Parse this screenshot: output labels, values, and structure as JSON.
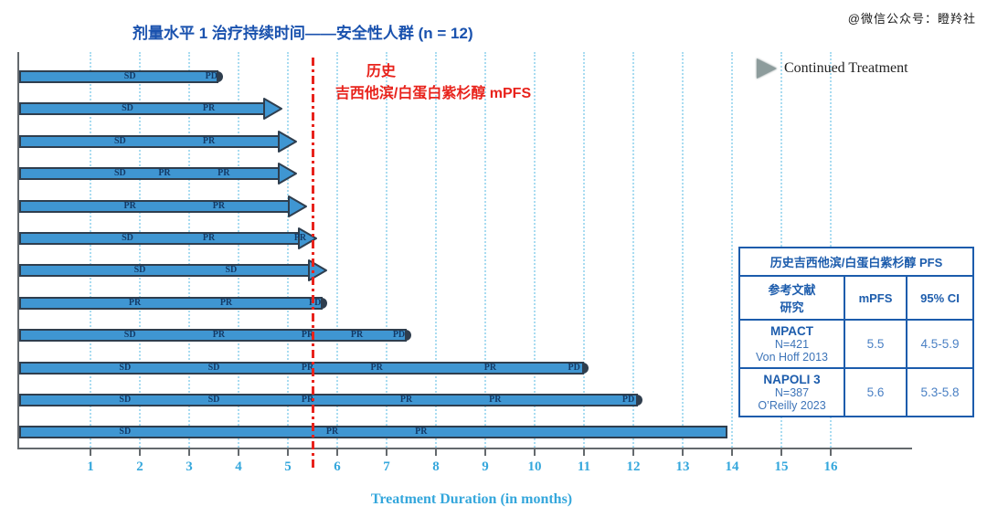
{
  "watermark": "@微信公众号：瞪羚社",
  "title": "剂量水平 1 治疗持续时间——安全性人群 (n = 12)",
  "legend": {
    "marker": "triangle-right",
    "label": "Continued Treatment"
  },
  "annotation": {
    "line1": "历史",
    "line2": "吉西他滨/白蛋白紫杉醇 mPFS",
    "color": "#e8231c"
  },
  "chart_data": {
    "type": "bar",
    "subtype": "horizontal-swimmer-plot",
    "title": "剂量水平 1 治疗持续时间——安全性人群 (n = 12)",
    "xlabel": "Treatment Duration (in months)",
    "x_ticks": [
      1,
      2,
      3,
      4,
      5,
      6,
      7,
      8,
      9,
      10,
      11,
      12,
      13,
      14,
      15,
      16
    ],
    "xlim": [
      0,
      16.6
    ],
    "grid": "vertical-dotted",
    "reference_line": {
      "x_months": 5.5,
      "style": "dash-dot",
      "color": "#e8231c",
      "label": "历史 吉西他滨/白蛋白紫杉醇 mPFS"
    },
    "legend_position": "top-right",
    "bars": [
      {
        "subject": 1,
        "duration_months": 3.6,
        "end": "PD",
        "labels": [
          {
            "text": "SD",
            "month": 1.8
          },
          {
            "text": "PD",
            "month": 3.45
          }
        ]
      },
      {
        "subject": 2,
        "duration_months": 4.8,
        "end": "continued",
        "labels": [
          {
            "text": "SD",
            "month": 1.75
          },
          {
            "text": "PR",
            "month": 3.4
          }
        ]
      },
      {
        "subject": 3,
        "duration_months": 5.1,
        "end": "continued",
        "labels": [
          {
            "text": "SD",
            "month": 1.6
          },
          {
            "text": "PR",
            "month": 3.4
          }
        ]
      },
      {
        "subject": 4,
        "duration_months": 5.1,
        "end": "continued",
        "labels": [
          {
            "text": "SD",
            "month": 1.6
          },
          {
            "text": "PR",
            "month": 2.5
          },
          {
            "text": "PR",
            "month": 3.7
          }
        ]
      },
      {
        "subject": 5,
        "duration_months": 5.3,
        "end": "continued",
        "labels": [
          {
            "text": "PR",
            "month": 1.8
          },
          {
            "text": "PR",
            "month": 3.6
          }
        ]
      },
      {
        "subject": 6,
        "duration_months": 5.5,
        "end": "continued",
        "labels": [
          {
            "text": "SD",
            "month": 1.75
          },
          {
            "text": "PR",
            "month": 3.4
          },
          {
            "text": "PR",
            "month": 5.25
          }
        ]
      },
      {
        "subject": 7,
        "duration_months": 5.7,
        "end": "continued",
        "labels": [
          {
            "text": "SD",
            "month": 2.0
          },
          {
            "text": "SD",
            "month": 3.85
          }
        ]
      },
      {
        "subject": 8,
        "duration_months": 5.7,
        "end": "PD",
        "labels": [
          {
            "text": "PR",
            "month": 1.9
          },
          {
            "text": "PR",
            "month": 3.75
          },
          {
            "text": "PD",
            "month": 5.55
          }
        ]
      },
      {
        "subject": 9,
        "duration_months": 7.4,
        "end": "PD",
        "labels": [
          {
            "text": "SD",
            "month": 1.8
          },
          {
            "text": "PR",
            "month": 3.6
          },
          {
            "text": "PR",
            "month": 5.4
          },
          {
            "text": "PR",
            "month": 6.4
          },
          {
            "text": "PD",
            "month": 7.25
          }
        ]
      },
      {
        "subject": 10,
        "duration_months": 11.0,
        "end": "PD",
        "labels": [
          {
            "text": "SD",
            "month": 1.7
          },
          {
            "text": "SD",
            "month": 3.5
          },
          {
            "text": "PR",
            "month": 5.4
          },
          {
            "text": "PR",
            "month": 6.8
          },
          {
            "text": "PR",
            "month": 9.1
          },
          {
            "text": "PD",
            "month": 10.8
          }
        ]
      },
      {
        "subject": 11,
        "duration_months": 12.1,
        "end": "PD",
        "labels": [
          {
            "text": "SD",
            "month": 1.7
          },
          {
            "text": "SD",
            "month": 3.5
          },
          {
            "text": "PR",
            "month": 5.4
          },
          {
            "text": "PR",
            "month": 7.4
          },
          {
            "text": "PR",
            "month": 9.2
          },
          {
            "text": "PD",
            "month": 11.9
          }
        ]
      },
      {
        "subject": 12,
        "duration_months": 13.9,
        "end": "none",
        "labels": [
          {
            "text": "SD",
            "month": 1.7
          },
          {
            "text": "PR",
            "month": 5.9
          },
          {
            "text": "PR",
            "month": 7.7
          }
        ]
      }
    ],
    "colors": {
      "bar_fill": "#3f96d2",
      "bar_outline": "#2f3e4e",
      "bar_label": "#143a66",
      "gridline": "#a9dcf1",
      "axis": "#64696d",
      "tick_label": "#35a7dc",
      "reference_line": "#e8231c",
      "title": "#1a52ae",
      "table_border": "#1c5cac",
      "legend_marker": "#8d9c9c"
    }
  },
  "table": {
    "title": "历史吉西他滨/白蛋白紫杉醇 PFS",
    "col_headers": [
      "参考文献\n研究",
      "mPFS",
      "95% CI"
    ],
    "rows": [
      {
        "study": "MPACT",
        "n": "N=421",
        "ref": "Von Hoff 2013",
        "mpfs": "5.5",
        "ci": "4.5-5.9"
      },
      {
        "study": "NAPOLI 3",
        "n": "N=387",
        "ref": "O’Reilly 2023",
        "mpfs": "5.6",
        "ci": "5.3-5.8"
      }
    ]
  }
}
